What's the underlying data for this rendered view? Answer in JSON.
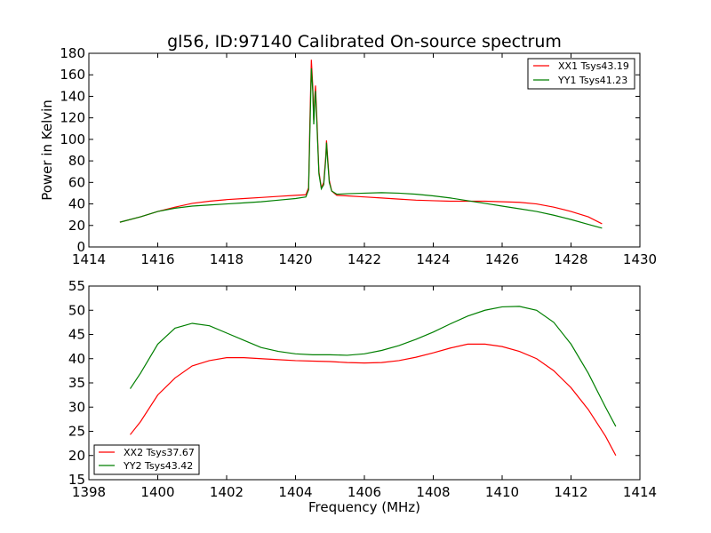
{
  "chart_data": [
    {
      "type": "line",
      "title": "gl56, ID:97140 Calibrated On-source spectrum",
      "xlabel": "",
      "ylabel": "Power in Kelvin",
      "xlim": [
        1414,
        1430
      ],
      "ylim": [
        0,
        180
      ],
      "xticks": [
        "1414",
        "1416",
        "1418",
        "1420",
        "1422",
        "1424",
        "1426",
        "1428",
        "1430"
      ],
      "yticks": [
        "0",
        "20",
        "40",
        "60",
        "80",
        "100",
        "120",
        "140",
        "160",
        "180"
      ],
      "legend_position": "top-right",
      "grid": false,
      "series": [
        {
          "name": "XX1 Tsys43.19",
          "color": "#ff0000",
          "points": [
            [
              1414.9,
              23
            ],
            [
              1415.5,
              28
            ],
            [
              1416,
              33
            ],
            [
              1416.5,
              37
            ],
            [
              1417,
              40.5
            ],
            [
              1417.5,
              42.5
            ],
            [
              1418,
              44
            ],
            [
              1418.5,
              45
            ],
            [
              1419,
              46
            ],
            [
              1419.5,
              47
            ],
            [
              1420,
              48
            ],
            [
              1420.3,
              48.5
            ],
            [
              1420.38,
              55
            ],
            [
              1420.42,
              120
            ],
            [
              1420.46,
              174
            ],
            [
              1420.5,
              150
            ],
            [
              1420.53,
              118
            ],
            [
              1420.56,
              140
            ],
            [
              1420.58,
              150
            ],
            [
              1420.62,
              120
            ],
            [
              1420.68,
              70
            ],
            [
              1420.75,
              55
            ],
            [
              1420.82,
              60
            ],
            [
              1420.88,
              85
            ],
            [
              1420.9,
              99
            ],
            [
              1420.93,
              85
            ],
            [
              1420.98,
              62
            ],
            [
              1421.05,
              52
            ],
            [
              1421.2,
              48
            ],
            [
              1421.5,
              47.5
            ],
            [
              1422,
              46.5
            ],
            [
              1422.5,
              45.5
            ],
            [
              1423,
              44.5
            ],
            [
              1423.5,
              43.5
            ],
            [
              1424,
              43
            ],
            [
              1424.5,
              42.5
            ],
            [
              1425,
              42.5
            ],
            [
              1425.5,
              42.5
            ],
            [
              1426,
              42
            ],
            [
              1426.5,
              41.5
            ],
            [
              1427,
              40
            ],
            [
              1427.5,
              37
            ],
            [
              1428,
              33
            ],
            [
              1428.5,
              28
            ],
            [
              1428.9,
              21.5
            ]
          ]
        },
        {
          "name": "YY1 Tsys41.23",
          "color": "#007f00",
          "points": [
            [
              1414.9,
              23
            ],
            [
              1415.5,
              28
            ],
            [
              1416,
              33
            ],
            [
              1416.5,
              36
            ],
            [
              1417,
              38
            ],
            [
              1417.5,
              39
            ],
            [
              1418,
              40
            ],
            [
              1418.5,
              41
            ],
            [
              1419,
              42
            ],
            [
              1419.5,
              43.5
            ],
            [
              1420,
              45
            ],
            [
              1420.3,
              46.5
            ],
            [
              1420.38,
              53
            ],
            [
              1420.42,
              110
            ],
            [
              1420.46,
              166
            ],
            [
              1420.5,
              145
            ],
            [
              1420.53,
              114
            ],
            [
              1420.56,
              135
            ],
            [
              1420.58,
              145
            ],
            [
              1420.62,
              115
            ],
            [
              1420.68,
              68
            ],
            [
              1420.75,
              54
            ],
            [
              1420.82,
              58
            ],
            [
              1420.88,
              82
            ],
            [
              1420.9,
              97
            ],
            [
              1420.93,
              82
            ],
            [
              1420.98,
              60
            ],
            [
              1421.05,
              52
            ],
            [
              1421.2,
              49
            ],
            [
              1421.5,
              49.5
            ],
            [
              1422,
              50
            ],
            [
              1422.5,
              50.5
            ],
            [
              1423,
              50
            ],
            [
              1423.5,
              49
            ],
            [
              1424,
              47.5
            ],
            [
              1424.5,
              45.5
            ],
            [
              1425,
              43
            ],
            [
              1425.5,
              40.5
            ],
            [
              1426,
              38
            ],
            [
              1426.5,
              35.5
            ],
            [
              1427,
              33
            ],
            [
              1427.5,
              29.5
            ],
            [
              1428,
              25.5
            ],
            [
              1428.5,
              21
            ],
            [
              1428.9,
              17.5
            ]
          ]
        }
      ]
    },
    {
      "type": "line",
      "title": "",
      "xlabel": "Frequency (MHz)",
      "ylabel": "",
      "xlim": [
        1398,
        1414
      ],
      "ylim": [
        15,
        55
      ],
      "xticks": [
        "1398",
        "1400",
        "1402",
        "1404",
        "1406",
        "1408",
        "1410",
        "1412",
        "1414"
      ],
      "yticks": [
        "15",
        "20",
        "25",
        "30",
        "35",
        "40",
        "45",
        "50",
        "55"
      ],
      "legend_position": "bottom-left",
      "grid": false,
      "series": [
        {
          "name": "XX2 Tsys37.67",
          "color": "#ff0000",
          "points": [
            [
              1399.2,
              24.3
            ],
            [
              1399.5,
              27
            ],
            [
              1400,
              32.5
            ],
            [
              1400.5,
              36
            ],
            [
              1401,
              38.5
            ],
            [
              1401.5,
              39.6
            ],
            [
              1402,
              40.2
            ],
            [
              1402.5,
              40.2
            ],
            [
              1403,
              40
            ],
            [
              1403.5,
              39.8
            ],
            [
              1404,
              39.6
            ],
            [
              1404.5,
              39.5
            ],
            [
              1405,
              39.4
            ],
            [
              1405.5,
              39.2
            ],
            [
              1406,
              39.1
            ],
            [
              1406.5,
              39.2
            ],
            [
              1407,
              39.6
            ],
            [
              1407.5,
              40.3
            ],
            [
              1408,
              41.2
            ],
            [
              1408.5,
              42.2
            ],
            [
              1409,
              43
            ],
            [
              1409.5,
              43
            ],
            [
              1410,
              42.5
            ],
            [
              1410.5,
              41.5
            ],
            [
              1411,
              40
            ],
            [
              1411.5,
              37.5
            ],
            [
              1412,
              34
            ],
            [
              1412.5,
              29.5
            ],
            [
              1413,
              24
            ],
            [
              1413.3,
              20
            ]
          ]
        },
        {
          "name": "YY2 Tsys43.42",
          "color": "#007f00",
          "points": [
            [
              1399.2,
              33.8
            ],
            [
              1399.5,
              37
            ],
            [
              1400,
              43
            ],
            [
              1400.5,
              46.3
            ],
            [
              1401,
              47.3
            ],
            [
              1401.5,
              46.8
            ],
            [
              1402,
              45.3
            ],
            [
              1402.5,
              43.8
            ],
            [
              1403,
              42.3
            ],
            [
              1403.5,
              41.5
            ],
            [
              1404,
              41
            ],
            [
              1404.5,
              40.8
            ],
            [
              1405,
              40.8
            ],
            [
              1405.5,
              40.7
            ],
            [
              1406,
              41
            ],
            [
              1406.5,
              41.7
            ],
            [
              1407,
              42.7
            ],
            [
              1407.5,
              44
            ],
            [
              1408,
              45.5
            ],
            [
              1408.5,
              47.2
            ],
            [
              1409,
              48.8
            ],
            [
              1409.5,
              50
            ],
            [
              1410,
              50.7
            ],
            [
              1410.5,
              50.8
            ],
            [
              1411,
              50
            ],
            [
              1411.5,
              47.5
            ],
            [
              1412,
              43
            ],
            [
              1412.5,
              37
            ],
            [
              1413,
              30
            ],
            [
              1413.3,
              26
            ]
          ]
        }
      ]
    }
  ]
}
